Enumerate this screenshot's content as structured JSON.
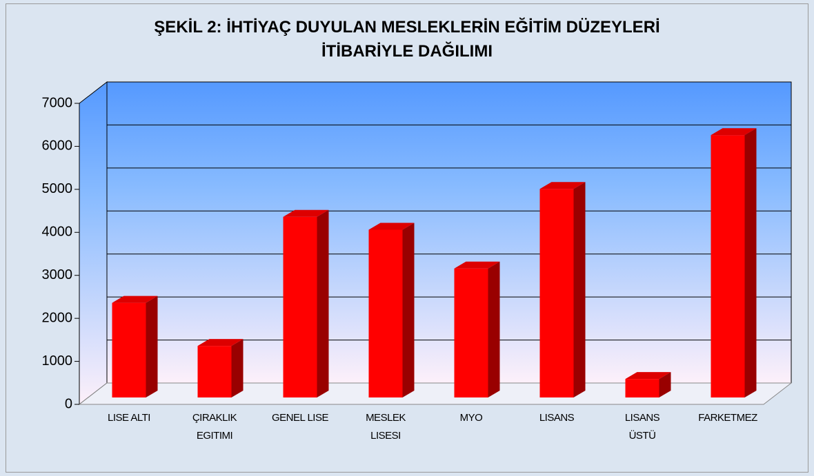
{
  "chart_data": {
    "type": "bar",
    "title": "ŞEKİL 2: İHTİYAÇ DUYULAN MESLEKLERİN EĞİTİM DÜZEYLERİ\nİTİBARİYLE DAĞILIMI",
    "categories": [
      "LISE ALTI",
      "ÇIRAKLIK\nEGITIMI",
      "GENEL LISE",
      "MESLEK\nLISESI",
      "MYO",
      "LISANS",
      "LISANS\nÜSTÜ",
      "FARKETMEZ"
    ],
    "values": [
      2200,
      1200,
      4200,
      3900,
      3000,
      4850,
      430,
      6100
    ],
    "color": "#ff0000",
    "ylim": [
      0,
      7000
    ],
    "yticks": [
      0,
      1000,
      2000,
      3000,
      4000,
      5000,
      6000,
      7000
    ],
    "grid": true
  }
}
